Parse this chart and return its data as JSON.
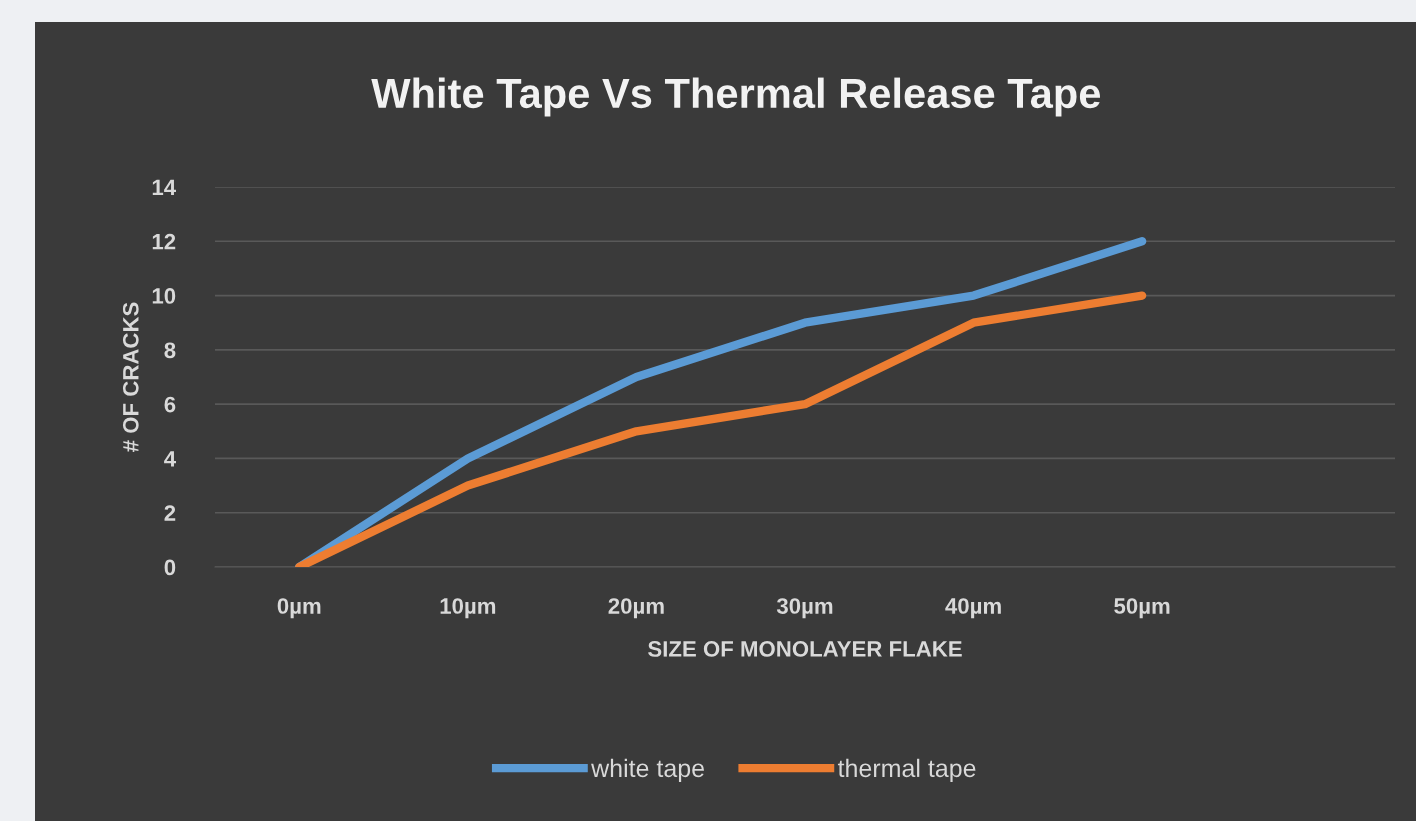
{
  "chart_data": {
    "type": "line",
    "title": "White Tape Vs Thermal Release Tape",
    "xlabel": "SIZE OF MONOLAYER FLAKE",
    "ylabel": "# OF CRACKS",
    "categories": [
      "0µm",
      "10µm",
      "20µm",
      "30µm",
      "40µm",
      "50µm",
      null
    ],
    "series": [
      {
        "name": "white tape",
        "color": "#5b9bd5",
        "values": [
          0,
          4,
          7,
          9,
          10,
          12,
          null
        ]
      },
      {
        "name": "thermal tape",
        "color": "#ed7d31",
        "values": [
          0,
          3,
          5,
          6,
          9,
          10,
          null
        ]
      }
    ],
    "ylim": [
      0,
      14
    ],
    "yticks": [
      0,
      2,
      4,
      6,
      8,
      10,
      12,
      14
    ],
    "grid": "y",
    "legend": "bottom",
    "marker": "none",
    "line_style": "solid"
  }
}
